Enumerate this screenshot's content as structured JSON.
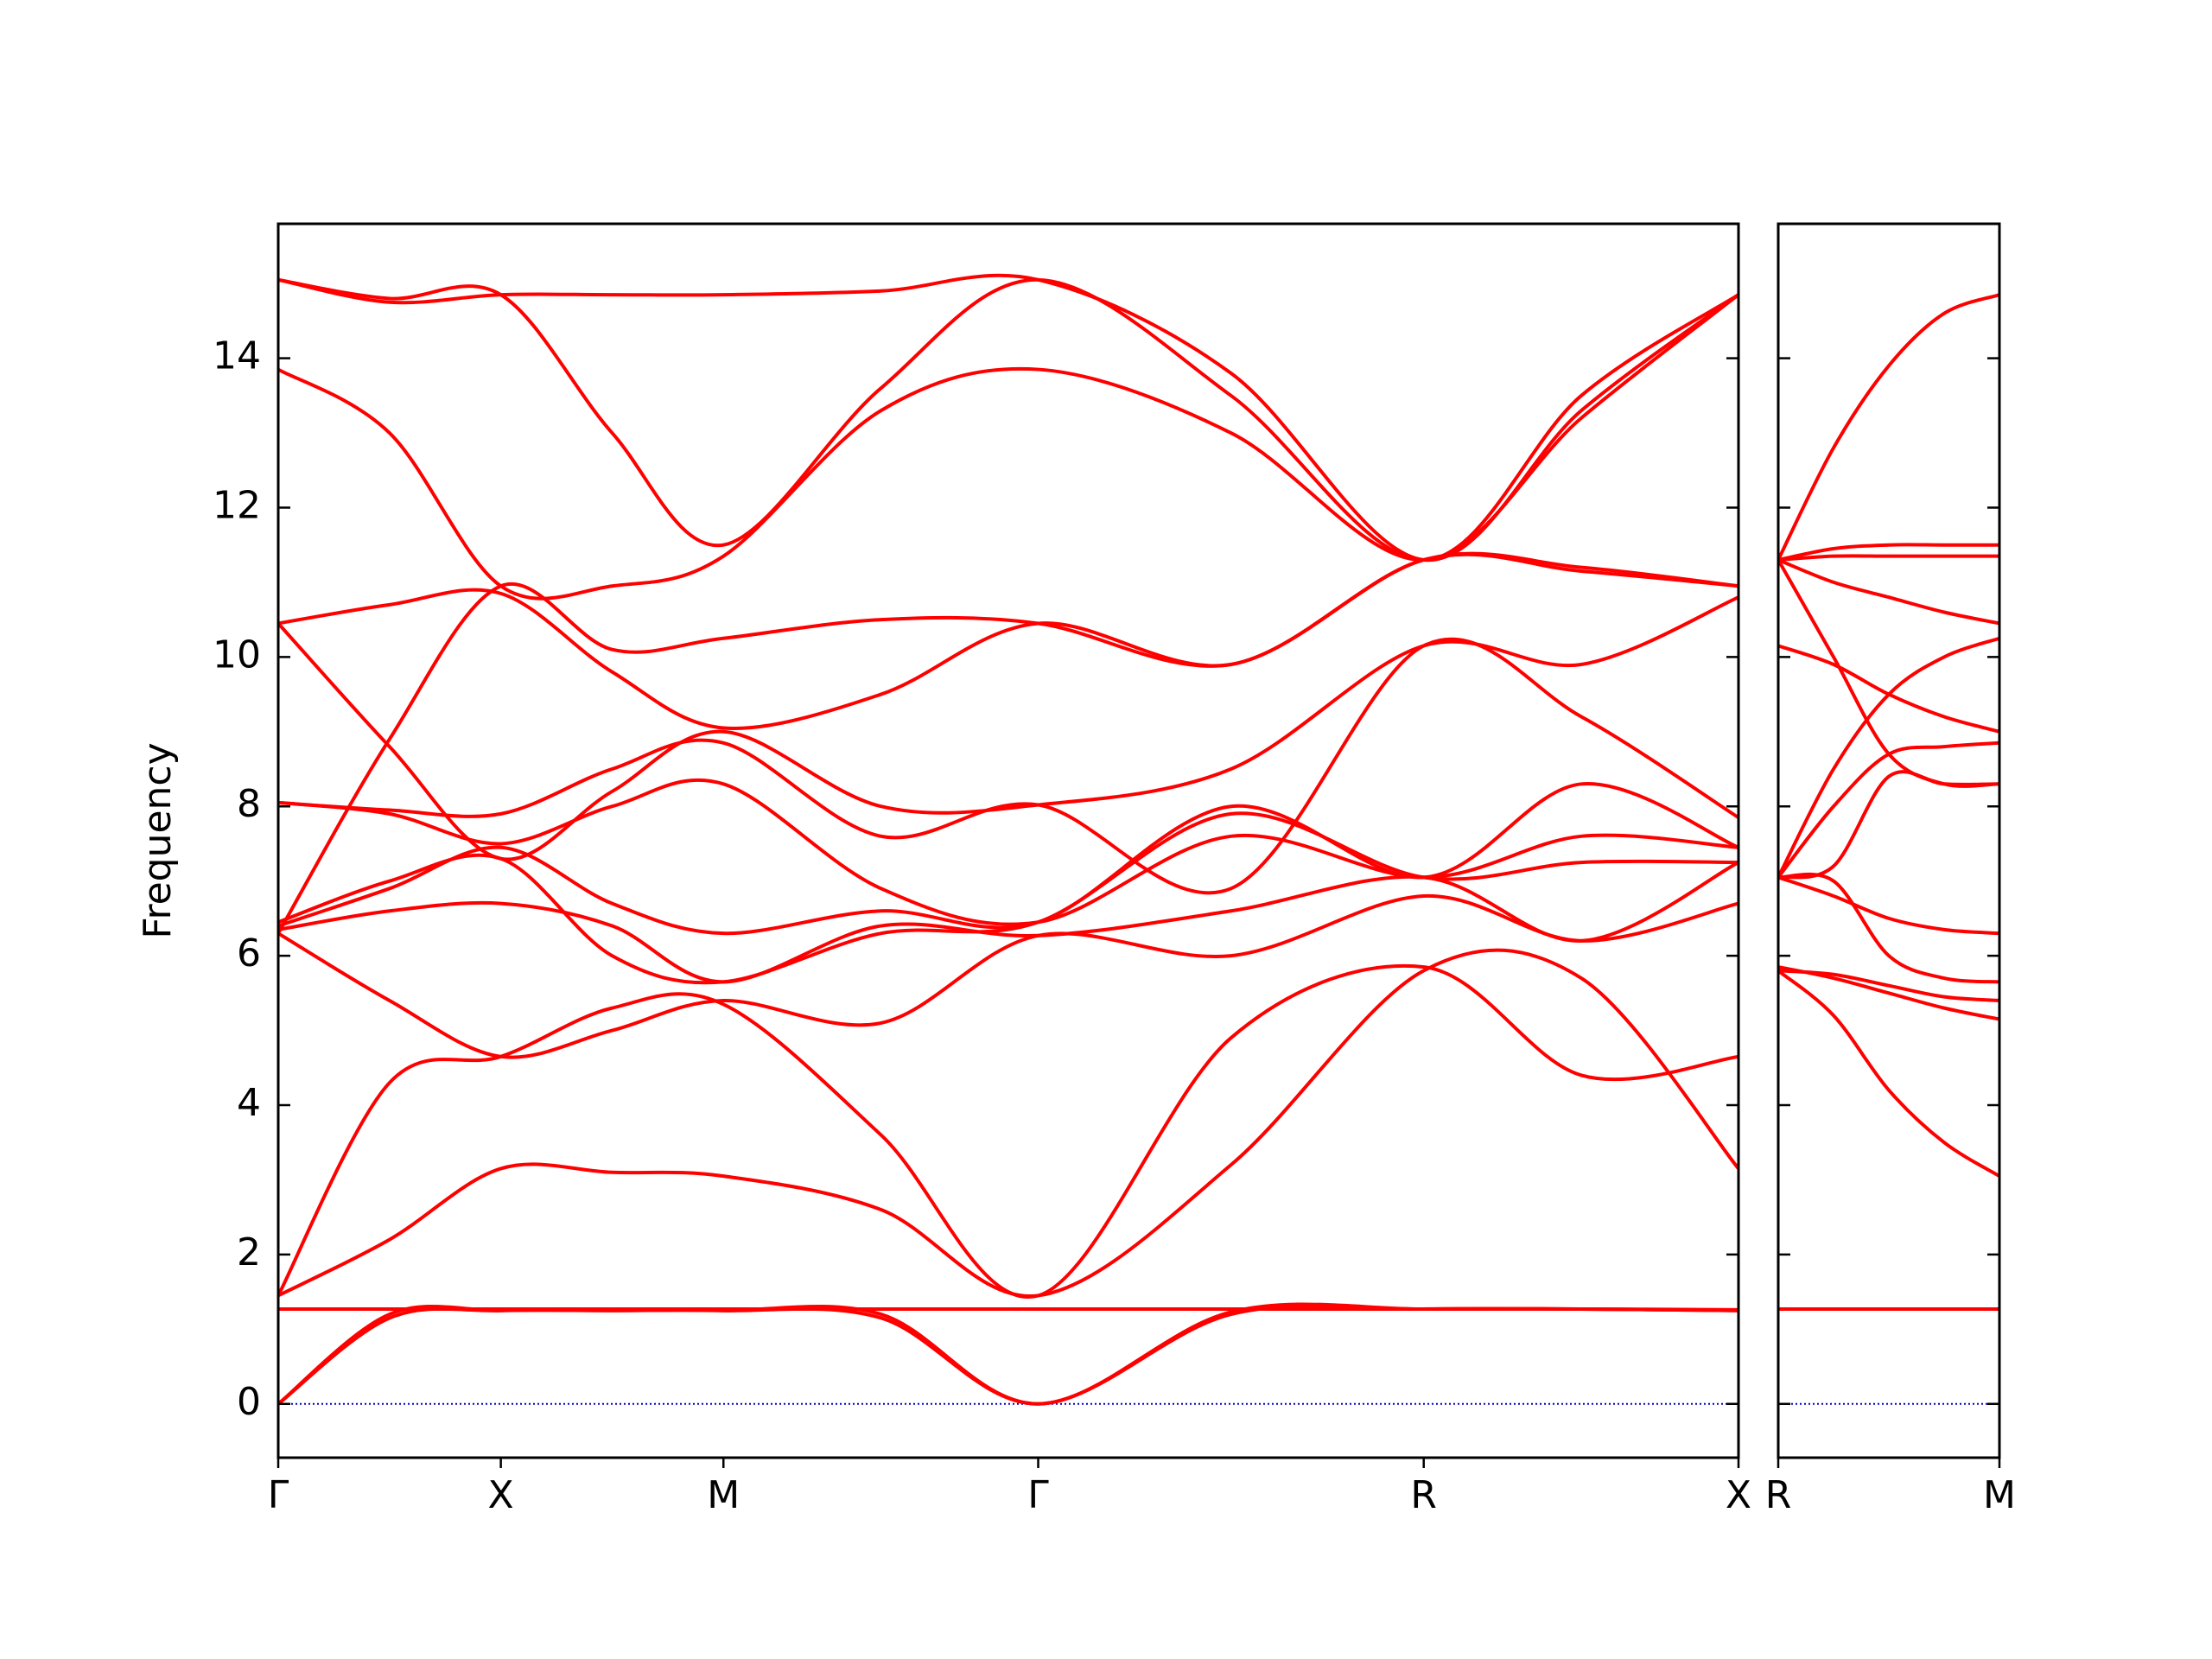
{
  "chart_data": [
    {
      "type": "line",
      "ylabel": "Frequency",
      "color": "#ff0000",
      "zero_line_color": "#0000cc",
      "xlim": [
        0,
        3.28
      ],
      "ylim": [
        -0.72,
        15.8
      ],
      "xticks": [
        {
          "value": 0,
          "label": "Γ"
        },
        {
          "value": 0.5,
          "label": "X"
        },
        {
          "value": 1.0,
          "label": "M"
        },
        {
          "value": 1.707,
          "label": "Γ"
        },
        {
          "value": 2.573,
          "label": "R"
        },
        {
          "value": 3.28,
          "label": "X"
        }
      ],
      "yticks": [
        0,
        2,
        4,
        6,
        8,
        10,
        12,
        14
      ],
      "x": [
        0,
        0.25,
        0.5,
        0.75,
        1.0,
        1.354,
        1.707,
        2.14,
        2.573,
        2.927,
        3.28
      ],
      "series": [
        {
          "values": [
            0,
            1.15,
            1.25,
            1.25,
            1.25,
            1.15,
            0,
            1.2,
            1.27,
            1.27,
            1.25
          ]
        },
        {
          "values": [
            0,
            1.2,
            1.25,
            1.25,
            1.25,
            1.2,
            0,
            1.23,
            1.27,
            1.27,
            1.25
          ]
        },
        {
          "values": [
            1.27,
            1.27,
            1.27,
            1.27,
            1.27,
            1.27,
            1.27,
            1.27,
            1.27,
            1.27,
            1.26
          ]
        },
        {
          "values": [
            1.45,
            2.2,
            3.15,
            3.1,
            3.05,
            2.6,
            1.45,
            3.2,
            5.8,
            5.7,
            3.15
          ]
        },
        {
          "values": [
            1.45,
            4.3,
            4.65,
            5.3,
            5.35,
            3.6,
            1.45,
            4.9,
            5.85,
            4.4,
            4.65
          ]
        },
        {
          "values": [
            6.3,
            5.4,
            4.65,
            5.0,
            5.4,
            5.1,
            6.27,
            6.0,
            6.8,
            6.2,
            6.7
          ]
        },
        {
          "values": [
            6.35,
            6.6,
            6.7,
            6.4,
            5.65,
            6.4,
            6.27,
            6.6,
            7.05,
            6.2,
            7.25
          ]
        },
        {
          "values": [
            6.45,
            7.0,
            7.3,
            6.0,
            5.65,
            6.3,
            6.45,
            7.9,
            7.05,
            7.25,
            7.25
          ]
        },
        {
          "values": [
            6.4,
            6.9,
            7.45,
            6.7,
            6.3,
            6.6,
            6.45,
            8.0,
            7.05,
            8.3,
            7.45
          ]
        },
        {
          "values": [
            8.05,
            7.9,
            7.5,
            8.0,
            8.3,
            6.9,
            6.45,
            7.6,
            7.05,
            7.6,
            7.45
          ]
        },
        {
          "values": [
            8.05,
            7.95,
            7.9,
            8.5,
            8.85,
            7.6,
            8.02,
            6.9,
            10.15,
            9.2,
            7.85
          ]
        },
        {
          "values": [
            10.45,
            8.8,
            7.3,
            8.2,
            9.0,
            8.0,
            8.02,
            8.5,
            10.15,
            9.9,
            10.8
          ]
        },
        {
          "values": [
            10.45,
            10.7,
            10.85,
            9.8,
            9.05,
            9.5,
            10.45,
            9.9,
            11.3,
            11.2,
            10.95
          ]
        },
        {
          "values": [
            6.3,
            8.9,
            10.95,
            10.1,
            10.25,
            10.5,
            10.45,
            9.9,
            11.3,
            11.15,
            10.95
          ]
        },
        {
          "values": [
            13.85,
            13.0,
            10.95,
            10.95,
            11.35,
            13.3,
            13.85,
            13.0,
            11.3,
            13.2,
            14.85
          ]
        },
        {
          "values": [
            15.05,
            14.8,
            14.85,
            13.0,
            11.5,
            13.6,
            15.05,
            13.5,
            11.3,
            13.5,
            14.85
          ]
        },
        {
          "values": [
            15.05,
            14.75,
            14.85,
            14.85,
            14.85,
            14.9,
            15.05,
            13.8,
            11.3,
            13.3,
            14.85
          ]
        }
      ]
    },
    {
      "type": "line",
      "color": "#ff0000",
      "zero_line_color": "#0000cc",
      "xlim": [
        0,
        0.5
      ],
      "ylim": [
        -0.72,
        15.8
      ],
      "xticks": [
        {
          "value": 0,
          "label": "R"
        },
        {
          "value": 0.5,
          "label": "M"
        }
      ],
      "yticks": [
        0,
        2,
        4,
        6,
        8,
        10,
        12,
        14
      ],
      "x": [
        0,
        0.125,
        0.25,
        0.375,
        0.5
      ],
      "series": [
        {
          "values": [
            1.27,
            1.27,
            1.27,
            1.27,
            1.27
          ]
        },
        {
          "values": [
            5.8,
            5.2,
            4.2,
            3.5,
            3.05
          ]
        },
        {
          "values": [
            5.85,
            5.7,
            5.5,
            5.3,
            5.15
          ]
        },
        {
          "values": [
            5.8,
            5.75,
            5.6,
            5.45,
            5.4
          ]
        },
        {
          "values": [
            7.05,
            7.0,
            6.0,
            5.7,
            5.65
          ]
        },
        {
          "values": [
            7.05,
            6.8,
            6.5,
            6.35,
            6.3
          ]
        },
        {
          "values": [
            7.05,
            7.2,
            8.4,
            8.3,
            8.3
          ]
        },
        {
          "values": [
            7.05,
            8.0,
            8.7,
            8.8,
            8.85
          ]
        },
        {
          "values": [
            7.05,
            8.5,
            9.5,
            10.0,
            10.25
          ]
        },
        {
          "values": [
            10.15,
            9.9,
            9.5,
            9.2,
            9.0
          ]
        },
        {
          "values": [
            11.3,
            10.0,
            8.7,
            8.3,
            8.3
          ]
        },
        {
          "values": [
            11.3,
            11.0,
            10.8,
            10.6,
            10.45
          ]
        },
        {
          "values": [
            11.3,
            11.35,
            11.35,
            11.35,
            11.35
          ]
        },
        {
          "values": [
            11.3,
            11.45,
            11.5,
            11.5,
            11.5
          ]
        },
        {
          "values": [
            11.3,
            12.8,
            13.9,
            14.6,
            14.85
          ]
        }
      ]
    }
  ]
}
